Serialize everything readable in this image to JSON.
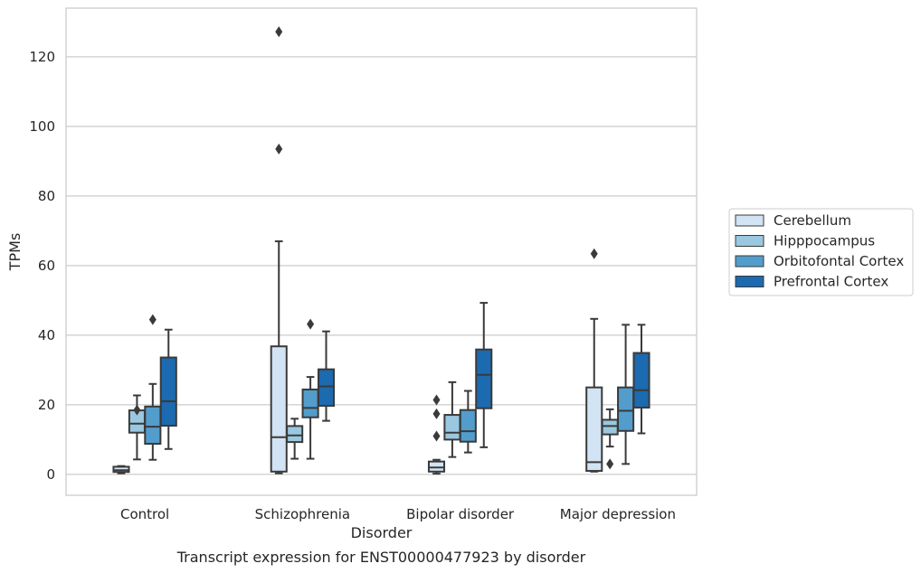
{
  "chart_data": {
    "type": "boxplot",
    "title": "Transcript expression for ENST00000477923 by disorder",
    "xlabel": "Disorder",
    "ylabel": "TPMs",
    "ylim": [
      -6,
      134
    ],
    "yticks": [
      0,
      20,
      40,
      60,
      80,
      100,
      120
    ],
    "grid": true,
    "legend_position": "right",
    "categories": [
      "Control",
      "Schizophrenia",
      "Bipolar disorder",
      "Major depression"
    ],
    "series": [
      {
        "name": "Cerebellum",
        "color": "#d2e3f3",
        "boxes": [
          {
            "whislo": 0.3,
            "q1": 0.7,
            "med": 1.2,
            "q3": 2.2,
            "whishi": 2.4,
            "fliers": []
          },
          {
            "whislo": 0.3,
            "q1": 0.8,
            "med": 10.7,
            "q3": 36.8,
            "whishi": 67.0,
            "fliers": [
              93.5,
              127.2
            ]
          },
          {
            "whislo": 0.2,
            "q1": 0.8,
            "med": 2.0,
            "q3": 3.7,
            "whishi": 4.2,
            "fliers": [
              11.0,
              17.4,
              21.4
            ]
          },
          {
            "whislo": 0.8,
            "q1": 1.0,
            "med": 3.5,
            "q3": 25.0,
            "whishi": 44.7,
            "fliers": [
              63.4
            ]
          }
        ]
      },
      {
        "name": "Hipppocampus",
        "color": "#9ac8e0",
        "boxes": [
          {
            "whislo": 4.3,
            "q1": 12.0,
            "med": 14.6,
            "q3": 18.4,
            "whishi": 22.7,
            "fliers": [
              18.5
            ]
          },
          {
            "whislo": 4.5,
            "q1": 9.3,
            "med": 11.2,
            "q3": 13.9,
            "whishi": 16.0,
            "fliers": []
          },
          {
            "whislo": 5.0,
            "q1": 10.0,
            "med": 12.0,
            "q3": 17.1,
            "whishi": 26.5,
            "fliers": []
          },
          {
            "whislo": 8.0,
            "q1": 11.5,
            "med": 13.9,
            "q3": 15.7,
            "whishi": 18.7,
            "fliers": [
              3.0
            ]
          }
        ]
      },
      {
        "name": "Orbitofontal Cortex",
        "color": "#529dcc",
        "boxes": [
          {
            "whislo": 4.2,
            "q1": 8.8,
            "med": 13.7,
            "q3": 19.5,
            "whishi": 26.0,
            "fliers": [
              44.5
            ]
          },
          {
            "whislo": 4.5,
            "q1": 16.4,
            "med": 19.1,
            "q3": 24.4,
            "whishi": 28.0,
            "fliers": [
              43.2
            ]
          },
          {
            "whislo": 6.3,
            "q1": 9.4,
            "med": 12.4,
            "q3": 18.5,
            "whishi": 24.0,
            "fliers": []
          },
          {
            "whislo": 3.0,
            "q1": 12.5,
            "med": 18.3,
            "q3": 25.0,
            "whishi": 43.0,
            "fliers": []
          }
        ]
      },
      {
        "name": "Prefrontal Cortex",
        "color": "#1c6aaf",
        "boxes": [
          {
            "whislo": 7.3,
            "q1": 14.0,
            "med": 21.0,
            "q3": 33.6,
            "whishi": 41.6,
            "fliers": []
          },
          {
            "whislo": 15.4,
            "q1": 19.7,
            "med": 25.3,
            "q3": 30.2,
            "whishi": 41.1,
            "fliers": []
          },
          {
            "whislo": 7.8,
            "q1": 19.0,
            "med": 28.6,
            "q3": 35.9,
            "whishi": 49.3,
            "fliers": []
          },
          {
            "whislo": 11.8,
            "q1": 19.2,
            "med": 24.2,
            "q3": 34.9,
            "whishi": 43.0,
            "fliers": []
          }
        ]
      }
    ]
  }
}
